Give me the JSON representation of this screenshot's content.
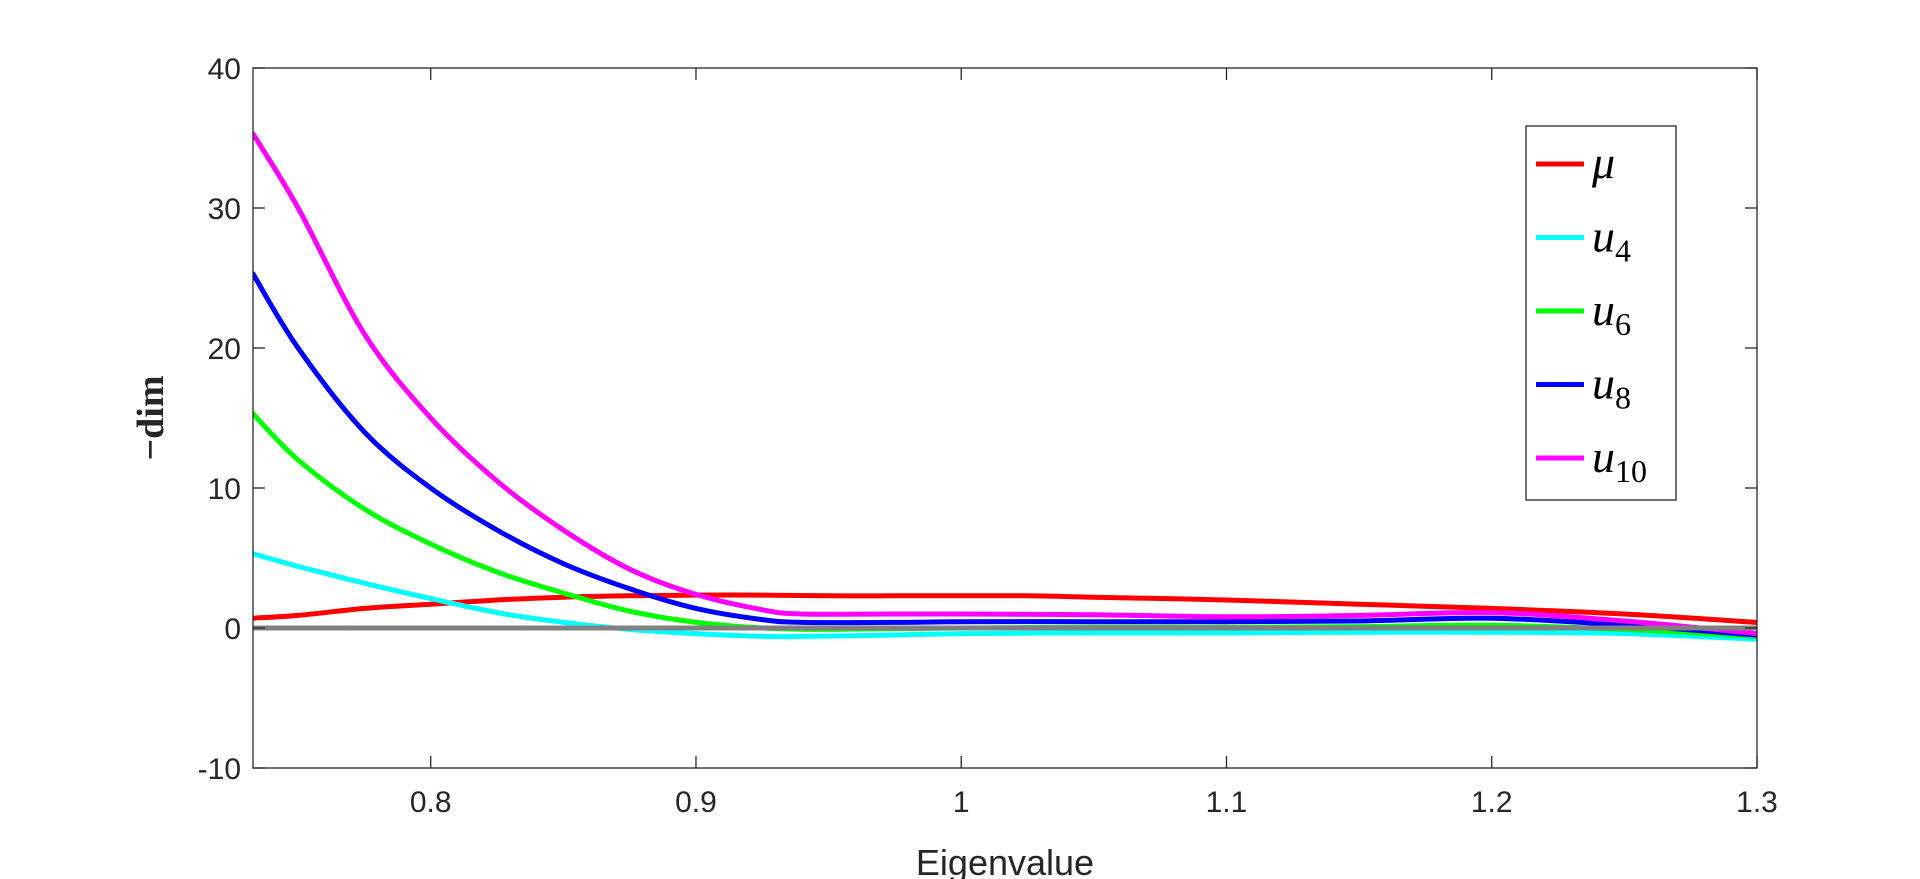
{
  "chart_data": {
    "type": "line",
    "xlabel": "Eigenvalue",
    "ylabel": "−dim",
    "xlim": [
      0.733,
      1.3
    ],
    "ylim": [
      -10,
      40
    ],
    "xticks": [
      "0.8",
      "0.9",
      "1",
      "1.1",
      "1.2",
      "1.3"
    ],
    "yticks": [
      "-10",
      "0",
      "10",
      "20",
      "30",
      "40"
    ],
    "xtick_values": [
      0.8,
      0.9,
      1.0,
      1.1,
      1.2,
      1.3
    ],
    "ytick_values": [
      -10,
      0,
      10,
      20,
      30,
      40
    ],
    "grid": false,
    "legend_position": "top-right",
    "reference_line": {
      "y": 0,
      "color": "#808080"
    },
    "series": [
      {
        "name": "μ",
        "subscript": "",
        "color": "#ff0000",
        "x": [
          0.733,
          0.75,
          0.775,
          0.8,
          0.825,
          0.85,
          0.875,
          0.9,
          0.925,
          0.95,
          0.975,
          1.0,
          1.025,
          1.05,
          1.1,
          1.15,
          1.2,
          1.25,
          1.3
        ],
        "y": [
          0.7,
          0.9,
          1.4,
          1.7,
          2.0,
          2.2,
          2.3,
          2.35,
          2.35,
          2.3,
          2.3,
          2.3,
          2.3,
          2.2,
          2.0,
          1.7,
          1.4,
          1.0,
          0.4
        ]
      },
      {
        "name": "u",
        "subscript": "4",
        "color": "#00ffff",
        "x": [
          0.733,
          0.75,
          0.775,
          0.8,
          0.825,
          0.85,
          0.875,
          0.9,
          0.925,
          0.94,
          0.975,
          1.0,
          1.05,
          1.1,
          1.15,
          1.2,
          1.25,
          1.3
        ],
        "y": [
          5.3,
          4.4,
          3.2,
          2.1,
          1.1,
          0.4,
          -0.1,
          -0.4,
          -0.6,
          -0.6,
          -0.5,
          -0.4,
          -0.35,
          -0.35,
          -0.3,
          -0.3,
          -0.4,
          -0.8
        ]
      },
      {
        "name": "u",
        "subscript": "6",
        "color": "#00ff00",
        "x": [
          0.733,
          0.75,
          0.775,
          0.8,
          0.825,
          0.85,
          0.875,
          0.9,
          0.925,
          0.95,
          1.0,
          1.05,
          1.1,
          1.15,
          1.2,
          1.25,
          1.3
        ],
        "y": [
          15.3,
          12.0,
          8.5,
          6.0,
          4.0,
          2.5,
          1.2,
          0.4,
          0.0,
          -0.1,
          0.0,
          0.05,
          0.05,
          0.1,
          0.2,
          -0.1,
          -0.6
        ]
      },
      {
        "name": "u",
        "subscript": "8",
        "color": "#0000ff",
        "x": [
          0.733,
          0.75,
          0.775,
          0.8,
          0.825,
          0.85,
          0.875,
          0.9,
          0.925,
          0.94,
          0.975,
          1.0,
          1.05,
          1.1,
          1.15,
          1.2,
          1.25,
          1.3
        ],
        "y": [
          25.3,
          20.0,
          14.0,
          10.0,
          7.0,
          4.6,
          2.8,
          1.4,
          0.6,
          0.4,
          0.4,
          0.45,
          0.45,
          0.45,
          0.5,
          0.7,
          0.2,
          -0.5
        ]
      },
      {
        "name": "u",
        "subscript": "10",
        "color": "#ff00ff",
        "x": [
          0.733,
          0.75,
          0.775,
          0.8,
          0.825,
          0.85,
          0.875,
          0.9,
          0.925,
          0.94,
          0.975,
          1.0,
          1.05,
          1.1,
          1.15,
          1.2,
          1.25,
          1.3
        ],
        "y": [
          35.3,
          30.0,
          21.0,
          15.0,
          10.5,
          7.0,
          4.2,
          2.4,
          1.3,
          1.0,
          1.0,
          1.0,
          0.95,
          0.8,
          0.9,
          1.1,
          0.5,
          -0.4
        ]
      }
    ]
  }
}
